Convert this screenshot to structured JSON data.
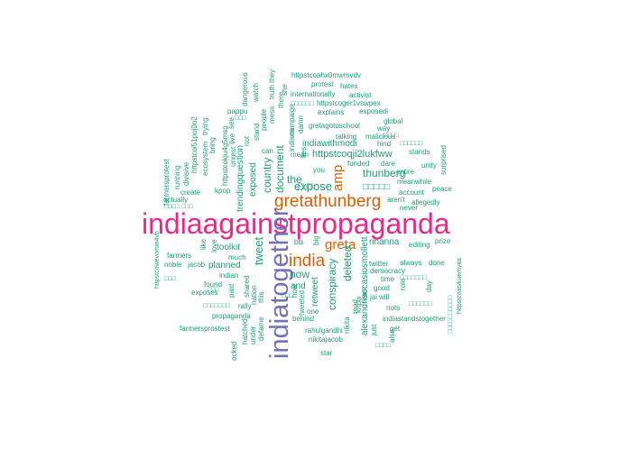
{
  "colors": {
    "teal": "#1b9e77",
    "orange": "#d95f02",
    "purple": "#7570b3",
    "magenta": "#e7298a"
  },
  "words": [
    {
      "text": "indiaagainstpropaganda",
      "color": "magenta",
      "tier": 1
    },
    {
      "text": "indiatogether",
      "color": "purple",
      "tier": 2
    },
    {
      "text": "gretathunberg",
      "color": "orange",
      "tier": 3
    },
    {
      "text": "india",
      "color": "orange",
      "tier": 3
    },
    {
      "text": "greta",
      "color": "orange",
      "tier": 4
    },
    {
      "text": "amp",
      "color": "orange",
      "tier": 4
    },
    {
      "text": "expose",
      "color": "teal",
      "tier": 5
    },
    {
      "text": "the",
      "color": "teal",
      "tier": 5
    },
    {
      "text": "tweet",
      "color": "teal",
      "tier": 5
    },
    {
      "text": "country",
      "color": "teal",
      "tier": 5
    },
    {
      "text": "document",
      "color": "teal",
      "tier": 5
    },
    {
      "text": "conspiracy",
      "color": "teal",
      "tier": 5
    },
    {
      "text": "deleted",
      "color": "teal",
      "tier": 5
    },
    {
      "text": "thunberg",
      "color": "teal",
      "tier": 5
    },
    {
      "text": "now",
      "color": "teal",
      "tier": 5
    },
    {
      "text": "httpstcoqji2lukfww",
      "color": "teal",
      "tier": 6
    },
    {
      "text": "indiawithmodi",
      "color": "teal",
      "tier": 6
    },
    {
      "text": "retweet",
      "color": "teal",
      "tier": 6
    },
    {
      "text": "alexandriaocasiosmollett",
      "color": "teal",
      "tier": 6
    },
    {
      "text": "rihanna",
      "color": "teal",
      "tier": 6
    },
    {
      "text": "toolkit",
      "color": "teal",
      "tier": 6
    },
    {
      "text": "planned",
      "color": "teal",
      "tier": 6
    },
    {
      "text": "and",
      "color": "teal",
      "tier": 6
    },
    {
      "text": "exposed",
      "color": "teal",
      "tier": 6
    },
    {
      "text": "trendingquestion",
      "color": "teal",
      "tier": 6
    },
    {
      "text": "httpstcokju4g5msg",
      "color": "teal",
      "tier": 7
    },
    {
      "text": "httpstcoi51poj0o2",
      "color": "teal",
      "tier": 7
    },
    {
      "text": "gretagotoschool",
      "color": "teal",
      "tier": 7
    },
    {
      "text": "indiastandstogether",
      "color": "teal",
      "tier": 7
    },
    {
      "text": "httpstcoger1vswpex",
      "color": "teal",
      "tier": 7
    },
    {
      "text": "httpstcoahx0mwmvdv",
      "color": "teal",
      "tier": 7
    },
    {
      "text": "farmersprotest",
      "color": "teal",
      "tier": 7
    },
    {
      "text": "farmersprostest",
      "color": "teal",
      "tier": 7
    },
    {
      "text": "httpstcowevomm4vb",
      "color": "teal",
      "tier": 7
    },
    {
      "text": "httpstcoatvkuemyxa",
      "color": "teal",
      "tier": 7
    },
    {
      "text": "rahulgandhi",
      "color": "teal",
      "tier": 7
    },
    {
      "text": "nikitajacob",
      "color": "teal",
      "tier": 7
    },
    {
      "text": "propaganda",
      "color": "teal",
      "tier": 7
    },
    {
      "text": "twitter",
      "color": "teal",
      "tier": 7
    },
    {
      "text": "democracy",
      "color": "teal",
      "tier": 7
    },
    {
      "text": "internationally",
      "color": "teal",
      "tier": 7
    },
    {
      "text": "explains",
      "color": "teal",
      "tier": 7
    },
    {
      "text": "exposedi",
      "color": "teal",
      "tier": 7
    },
    {
      "text": "malicious",
      "color": "teal",
      "tier": 7
    },
    {
      "text": "talking",
      "color": "teal",
      "tier": 7
    },
    {
      "text": "funded",
      "color": "teal",
      "tier": 7
    },
    {
      "text": "dare",
      "color": "teal",
      "tier": 7
    },
    {
      "text": "entire",
      "color": "teal",
      "tier": 7
    },
    {
      "text": "meanwhile",
      "color": "teal",
      "tier": 7
    },
    {
      "text": "account",
      "color": "teal",
      "tier": 7
    },
    {
      "text": "aren't",
      "color": "teal",
      "tier": 7
    },
    {
      "text": "allegedly",
      "color": "teal",
      "tier": 7
    },
    {
      "text": "never",
      "color": "teal",
      "tier": 7
    },
    {
      "text": "peace",
      "color": "teal",
      "tier": 7
    },
    {
      "text": "unity",
      "color": "teal",
      "tier": 7
    },
    {
      "text": "stands",
      "color": "teal",
      "tier": 7
    },
    {
      "text": "global",
      "color": "teal",
      "tier": 7
    },
    {
      "text": "way",
      "color": "teal",
      "tier": 7
    },
    {
      "text": "hind",
      "color": "teal",
      "tier": 7
    },
    {
      "text": "activist",
      "color": "teal",
      "tier": 7
    },
    {
      "text": "hates",
      "color": "teal",
      "tier": 7
    },
    {
      "text": "protest",
      "color": "teal",
      "tier": 7
    },
    {
      "text": "truth",
      "color": "teal",
      "tier": 7
    },
    {
      "text": "they",
      "color": "teal",
      "tier": 7
    },
    {
      "text": "she",
      "color": "teal",
      "tier": 7
    },
    {
      "text": "there",
      "color": "teal",
      "tier": 7
    },
    {
      "text": "mess",
      "color": "teal",
      "tier": 7
    },
    {
      "text": "damn",
      "color": "teal",
      "tier": 7
    },
    {
      "text": "indians",
      "color": "teal",
      "tier": 7
    },
    {
      "text": "campaign",
      "color": "teal",
      "tier": 7
    },
    {
      "text": "can",
      "color": "teal",
      "tier": 7
    },
    {
      "text": "mean",
      "color": "teal",
      "tier": 7
    },
    {
      "text": "lies",
      "color": "teal",
      "tier": 7
    },
    {
      "text": "you",
      "color": "teal",
      "tier": 7
    },
    {
      "text": "people",
      "color": "teal",
      "tier": 7
    },
    {
      "text": "stand",
      "color": "teal",
      "tier": 7
    },
    {
      "text": "not",
      "color": "teal",
      "tier": 7
    },
    {
      "text": "watch",
      "color": "teal",
      "tier": 7
    },
    {
      "text": "dangerous",
      "color": "teal",
      "tier": 7
    },
    {
      "text": "pappu",
      "color": "teal",
      "tier": 7
    },
    {
      "text": "see",
      "color": "teal",
      "tier": 7
    },
    {
      "text": "live",
      "color": "teal",
      "tier": 7
    },
    {
      "text": "unrest",
      "color": "teal",
      "tier": 7
    },
    {
      "text": "bring",
      "color": "teal",
      "tier": 7
    },
    {
      "text": "trying",
      "color": "teal",
      "tier": 7
    },
    {
      "text": "ecosystem",
      "color": "teal",
      "tier": 7
    },
    {
      "text": "divisive",
      "color": "teal",
      "tier": 7
    },
    {
      "text": "running",
      "color": "teal",
      "tier": 7
    },
    {
      "text": "create",
      "color": "teal",
      "tier": 7
    },
    {
      "text": "kpop",
      "color": "teal",
      "tier": 7
    },
    {
      "text": "actually",
      "color": "teal",
      "tier": 7
    },
    {
      "text": "love",
      "color": "teal",
      "tier": 7
    },
    {
      "text": "like",
      "color": "teal",
      "tier": 7
    },
    {
      "text": "farmers",
      "color": "teal",
      "tier": 7
    },
    {
      "text": "noble",
      "color": "teal",
      "tier": 7
    },
    {
      "text": "jacob",
      "color": "teal",
      "tier": 7
    },
    {
      "text": "much",
      "color": "teal",
      "tier": 7
    },
    {
      "text": "indian",
      "color": "teal",
      "tier": 7
    },
    {
      "text": "found",
      "color": "teal",
      "tier": 7
    },
    {
      "text": "exposes",
      "color": "teal",
      "tier": 7
    },
    {
      "text": "paid",
      "color": "teal",
      "tier": 7
    },
    {
      "text": "shared",
      "color": "teal",
      "tier": 7
    },
    {
      "text": "rally",
      "color": "teal",
      "tier": 7
    },
    {
      "text": "nation",
      "color": "teal",
      "tier": 7
    },
    {
      "text": "this",
      "color": "teal",
      "tier": 7
    },
    {
      "text": "hatched",
      "color": "teal",
      "tier": 7
    },
    {
      "text": "under",
      "color": "teal",
      "tier": 7
    },
    {
      "text": "defame",
      "color": "teal",
      "tier": 7
    },
    {
      "text": "ocked",
      "color": "teal",
      "tier": 7
    },
    {
      "text": "how",
      "color": "teal",
      "tier": 7
    },
    {
      "text": "tweeted",
      "color": "teal",
      "tier": 7
    },
    {
      "text": "behind",
      "color": "teal",
      "tier": 7
    },
    {
      "text": "one",
      "color": "teal",
      "tier": 7
    },
    {
      "text": "bts",
      "color": "teal",
      "tier": 7
    },
    {
      "text": "big",
      "color": "teal",
      "tier": 7
    },
    {
      "text": "nikita",
      "color": "teal",
      "tier": 7
    },
    {
      "text": "read",
      "color": "teal",
      "tier": 7
    },
    {
      "text": "team",
      "color": "teal",
      "tier": 7
    },
    {
      "text": "know",
      "color": "teal",
      "tier": 7
    },
    {
      "text": "just",
      "color": "teal",
      "tier": 7
    },
    {
      "text": "star",
      "color": "teal",
      "tier": 7
    },
    {
      "text": "jai",
      "color": "teal",
      "tier": 7
    },
    {
      "text": "will",
      "color": "teal",
      "tier": 7
    },
    {
      "text": "good",
      "color": "teal",
      "tier": 7
    },
    {
      "text": "time",
      "color": "teal",
      "tier": 7
    },
    {
      "text": "role",
      "color": "teal",
      "tier": 7
    },
    {
      "text": "riots",
      "color": "teal",
      "tier": 7
    },
    {
      "text": "get",
      "color": "teal",
      "tier": 7
    },
    {
      "text": "also",
      "color": "teal",
      "tier": 7
    },
    {
      "text": "always",
      "color": "teal",
      "tier": 7
    },
    {
      "text": "done",
      "color": "teal",
      "tier": 7
    },
    {
      "text": "editing",
      "color": "teal",
      "tier": 7
    },
    {
      "text": "prize",
      "color": "teal",
      "tier": 7
    },
    {
      "text": "day",
      "color": "teal",
      "tier": 7
    },
    {
      "text": "surprised",
      "color": "teal",
      "tier": 7
    }
  ]
}
